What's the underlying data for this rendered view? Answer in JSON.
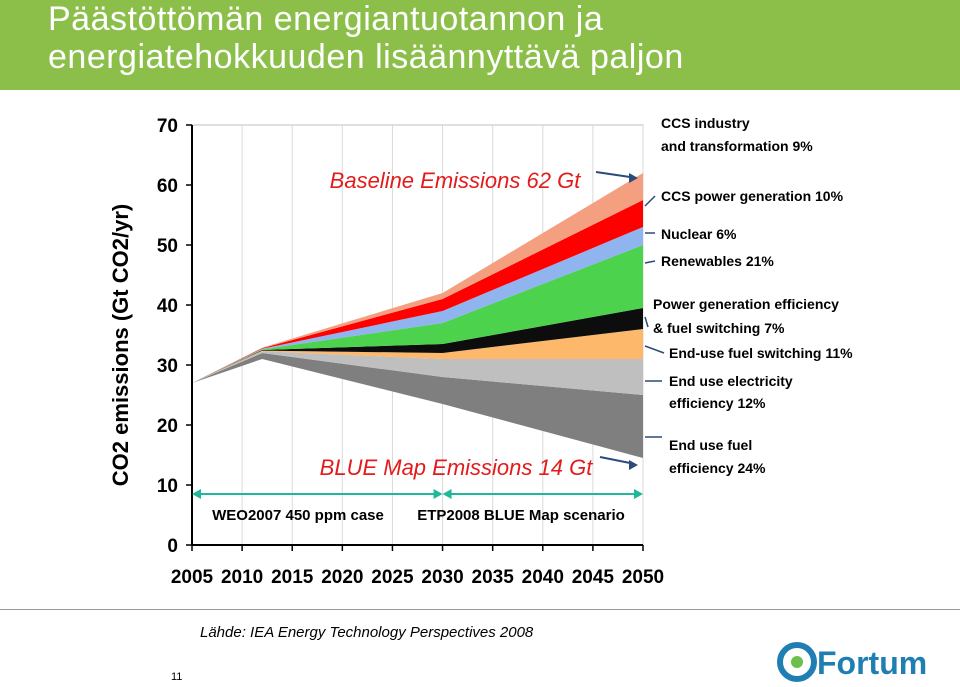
{
  "slide": {
    "title_line1": "Päästöttömän energiantuotannon ja",
    "title_line2": "energiatehokkuuden lisäännyttävä paljon",
    "source": "Lähde: IEA Energy Technology Perspectives 2008",
    "page_number": "11",
    "logo_text": "Fortum"
  },
  "colors": {
    "title_bg": "#8bbf4a",
    "annotation_red": "#e31b1b",
    "arrow_blue": "#2c4a7a",
    "scenario_green": "#1fb89a"
  },
  "chart_data": {
    "type": "area",
    "ylabel": "CO2 emissions (Gt CO2/yr)",
    "ylim": [
      0,
      70
    ],
    "yticks": [
      "0",
      "10",
      "20",
      "30",
      "40",
      "50",
      "60",
      "70"
    ],
    "x": [
      2005,
      2010,
      2015,
      2020,
      2025,
      2030,
      2035,
      2040,
      2045,
      2050
    ],
    "xticks": [
      "2005",
      "2010",
      "2015",
      "2020",
      "2025",
      "2030",
      "2035",
      "2040",
      "2045",
      "2050"
    ],
    "baseline_label": "Baseline Emissions 62 Gt",
    "blue_map_label": "BLUE Map Emissions 14 Gt",
    "scenario_labels": [
      "WEO2007 450 ppm case",
      "ETP2008 BLUE Map scenario"
    ],
    "key_x": [
      2005,
      2012,
      2030,
      2050
    ],
    "layers": [
      {
        "name": "End use fuel efficiency 24%",
        "lower": [
          27,
          31,
          23.5,
          14.5
        ],
        "upper": [
          27,
          32,
          28,
          25
        ],
        "color": "#7f7f7f"
      },
      {
        "name": "End use electricity efficiency 12%",
        "lower": [
          27,
          32,
          28,
          25
        ],
        "upper": [
          27,
          32.3,
          31,
          31
        ],
        "color": "#bfbfbf"
      },
      {
        "name": "End-use fuel switching 11%",
        "lower": [
          27,
          32.3,
          31,
          31
        ],
        "upper": [
          27,
          32.4,
          32,
          36
        ],
        "color": "#fdb86b"
      },
      {
        "name": "Power generation efficiency & fuel switching 7%",
        "lower": [
          27,
          32.4,
          32,
          36
        ],
        "upper": [
          27,
          32.5,
          33.5,
          39.5
        ],
        "color": "#0d0d0d"
      },
      {
        "name": "Renewables 21%",
        "lower": [
          27,
          32.5,
          33.5,
          39.5
        ],
        "upper": [
          27,
          32.6,
          37,
          50
        ],
        "color": "#4dd24d"
      },
      {
        "name": "Nuclear 6%",
        "lower": [
          27,
          32.6,
          37,
          50
        ],
        "upper": [
          27,
          32.7,
          39,
          53
        ],
        "color": "#8fb4f0"
      },
      {
        "name": "CCS power generation 10%",
        "lower": [
          27,
          32.7,
          39,
          53
        ],
        "upper": [
          27,
          32.8,
          41,
          57.5
        ],
        "color": "#ff0000"
      },
      {
        "name": "CCS industry and transformation 9%",
        "lower": [
          27,
          32.8,
          41,
          57.5
        ],
        "upper": [
          27,
          32.9,
          42,
          62
        ],
        "color": "#f4a080"
      }
    ],
    "annotations": [
      {
        "lines": [
          "CCS industry",
          "and transformation 9%"
        ]
      },
      {
        "lines": [
          "CCS power generation 10%"
        ]
      },
      {
        "lines": [
          "Nuclear 6%"
        ]
      },
      {
        "lines": [
          "Renewables 21%"
        ]
      },
      {
        "lines": [
          "Power generation efficiency",
          "& fuel switching 7%"
        ]
      },
      {
        "lines": [
          "End-use fuel switching 11%"
        ]
      },
      {
        "lines": [
          "End use electricity",
          "efficiency 12%"
        ]
      },
      {
        "lines": [
          "End use fuel",
          "efficiency 24%"
        ]
      }
    ]
  }
}
